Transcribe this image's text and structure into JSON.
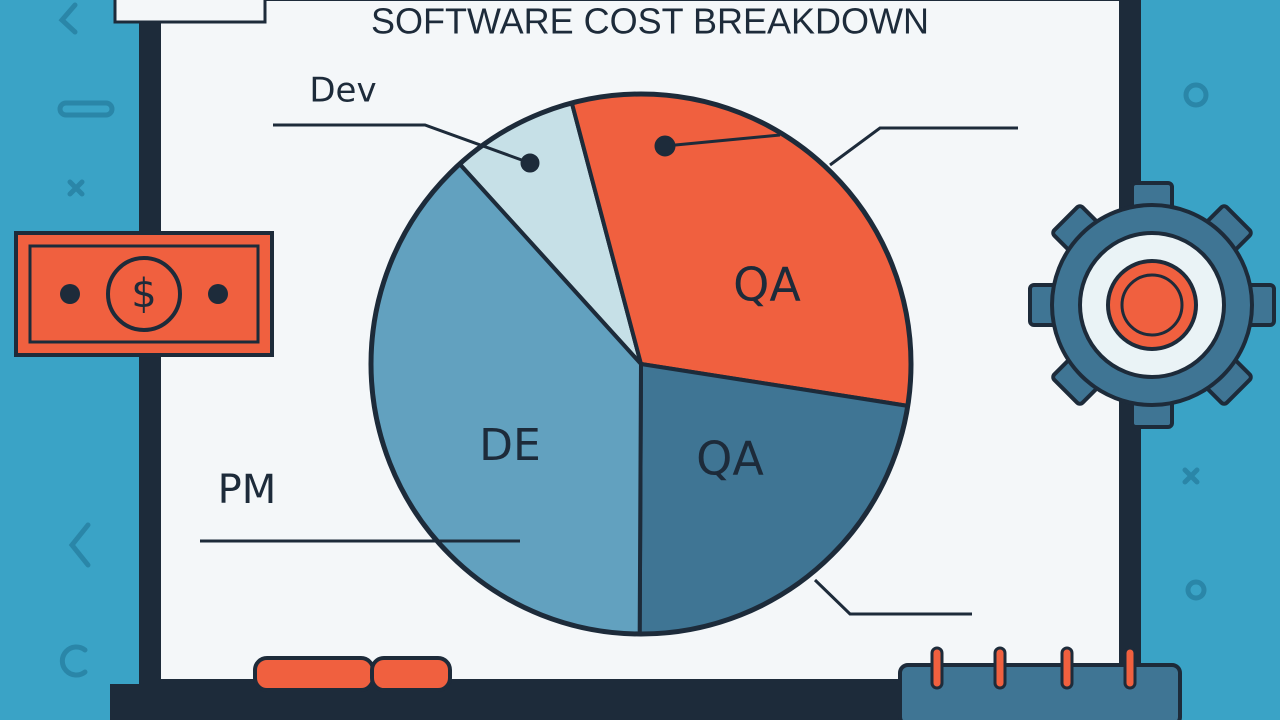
{
  "chart_data": {
    "type": "pie",
    "title": "SOFTWARE COST BREAKDOWN",
    "categories": [
      "Dev",
      "QA",
      "QA",
      "DE"
    ],
    "values": [
      7.6,
      31.6,
      22.6,
      38.2
    ],
    "colors": [
      "#c6e0e7",
      "#f0603f",
      "#3f7594",
      "#62a1bf"
    ],
    "annotations": [
      "PM"
    ]
  }
}
